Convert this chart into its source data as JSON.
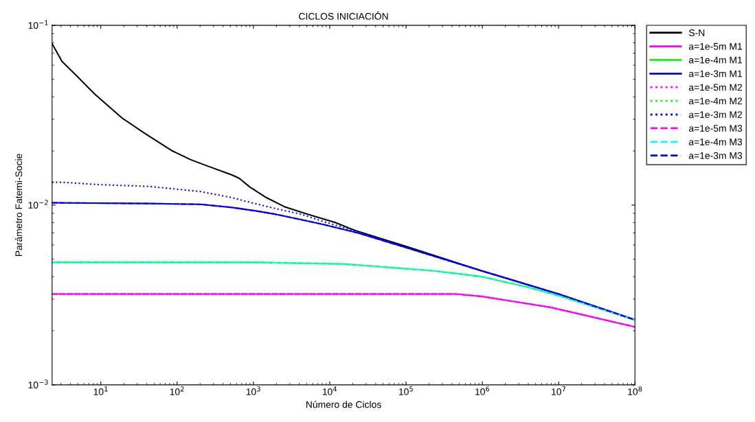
{
  "chart_data": {
    "type": "line",
    "title": "CICLOS INICIACIÓN",
    "xlabel": "Número de Ciclos",
    "ylabel": "Parámetro Fatemi-Socie",
    "log": "xy",
    "grid": false,
    "legend": "top right",
    "marker": "none",
    "xlim": [
      2.3,
      100000000
    ],
    "ylim": [
      0.001,
      0.1
    ],
    "xticks": [
      {
        "value": 10,
        "label": "10$^{1}$"
      },
      {
        "value": 100,
        "label": "10$^{2}$"
      },
      {
        "value": 1000,
        "label": "10$^{3}$"
      },
      {
        "value": 10000,
        "label": "10$^{4}$"
      },
      {
        "value": 100000,
        "label": "10$^{5}$"
      },
      {
        "value": 1000000,
        "label": "10$^{6}$"
      },
      {
        "value": 10000000,
        "label": "10$^{7}$"
      },
      {
        "value": 100000000,
        "label": "10$^{8}$"
      }
    ],
    "yticks": [
      {
        "value": 0.001,
        "label": "10$^{−3}$"
      },
      {
        "value": 0.01,
        "label": "10$^{−2}$"
      },
      {
        "value": 0.1,
        "label": "10$^{−1}$"
      }
    ],
    "series": [
      {
        "name": "S-N",
        "color": "#000000",
        "line_style": "solid",
        "x": [
          2.3,
          3.1,
          4.7,
          8.3,
          19,
          38,
          87,
          150,
          260,
          525,
          650,
          900,
          1480,
          2540,
          5150,
          11800,
          22000,
          100000,
          1000000,
          10000000,
          100000000
        ],
        "values": [
          0.079,
          0.063,
          0.053,
          0.0415,
          0.0305,
          0.025,
          0.02,
          0.0179,
          0.0164,
          0.0147,
          0.0141,
          0.0126,
          0.011,
          0.0098,
          0.0089,
          0.008,
          0.0072,
          0.0059,
          0.0043,
          0.0032,
          0.0023
        ]
      },
      {
        "name": "a=1e-5m M1",
        "color": "#ff00ff",
        "line_style": "solid",
        "x": [
          2.3,
          1000,
          100000,
          455000,
          1000000,
          7800000,
          100000000
        ],
        "values": [
          0.0032,
          0.0032,
          0.0032,
          0.0032,
          0.0031,
          0.0027,
          0.0021
        ]
      },
      {
        "name": "a=1e-4m M1",
        "color": "#00ff00",
        "line_style": "solid",
        "x": [
          2.3,
          1000,
          15500,
          244000,
          980000,
          3900000,
          11000000,
          100000000
        ],
        "values": [
          0.0048,
          0.0048,
          0.0047,
          0.0043,
          0.004,
          0.0035,
          0.0031,
          0.0023
        ]
      },
      {
        "name": "a=1e-3m M1",
        "color": "#0000ff",
        "line_style": "solid",
        "x": [
          2.3,
          43,
          200,
          525,
          1040,
          1940,
          4190,
          8300,
          23400,
          100000,
          1000000,
          10000000,
          100000000
        ],
        "values": [
          0.0103,
          0.0102,
          0.0101,
          0.0097,
          0.0093,
          0.0089,
          0.0083,
          0.0078,
          0.007,
          0.0058,
          0.0043,
          0.0032,
          0.0023
        ]
      },
      {
        "name": "a=1e-5m M2",
        "color": "#ff00ff",
        "line_style": "dotted",
        "x": [
          2.3,
          1000,
          100000,
          455000,
          1000000,
          7800000,
          100000000
        ],
        "values": [
          0.0032,
          0.0032,
          0.0032,
          0.0032,
          0.0031,
          0.0027,
          0.0021
        ]
      },
      {
        "name": "a=1e-4m M2",
        "color": "#00ff00",
        "line_style": "dotted",
        "x": [
          2.3,
          1000,
          15500,
          244000,
          980000,
          3900000,
          11000000,
          100000000
        ],
        "values": [
          0.0048,
          0.0048,
          0.0047,
          0.0043,
          0.004,
          0.0035,
          0.0031,
          0.0023
        ]
      },
      {
        "name": "a=1e-3m M2",
        "color": "#0000ff",
        "line_style": "dotted",
        "x": [
          2.3,
          3.1,
          9.4,
          43,
          200,
          525,
          1040,
          2100,
          4190,
          8300,
          23400,
          100000,
          1000000,
          10000000,
          100000000
        ],
        "values": [
          0.0134,
          0.0134,
          0.013,
          0.0127,
          0.0119,
          0.011,
          0.0102,
          0.0095,
          0.0089,
          0.0081,
          0.0071,
          0.0058,
          0.0043,
          0.0032,
          0.0023
        ]
      },
      {
        "name": "a=1e-5m M3",
        "color": "#ff00ff",
        "line_style": "dashed",
        "x": [
          2.3,
          1000,
          100000,
          455000,
          1000000,
          7800000,
          100000000
        ],
        "values": [
          0.0032,
          0.0032,
          0.0032,
          0.0032,
          0.0031,
          0.0027,
          0.0021
        ]
      },
      {
        "name": "a=1e-4m M3",
        "color": "#00ffff",
        "line_style": "dashed",
        "x": [
          2.3,
          1000,
          15500,
          244000,
          980000,
          3900000,
          11000000,
          100000000
        ],
        "values": [
          0.0048,
          0.0048,
          0.0047,
          0.0043,
          0.004,
          0.0035,
          0.0031,
          0.0023
        ]
      },
      {
        "name": "a=1e-3m M3",
        "color": "#0000ff",
        "line_style": "dashed",
        "x": [
          2.3,
          43,
          200,
          525,
          1040,
          1940,
          4190,
          8300,
          23400,
          100000,
          1000000,
          10000000,
          100000000
        ],
        "values": [
          0.0103,
          0.0102,
          0.0101,
          0.0097,
          0.0093,
          0.0089,
          0.0083,
          0.0078,
          0.007,
          0.0058,
          0.0043,
          0.0032,
          0.0023
        ]
      }
    ]
  }
}
